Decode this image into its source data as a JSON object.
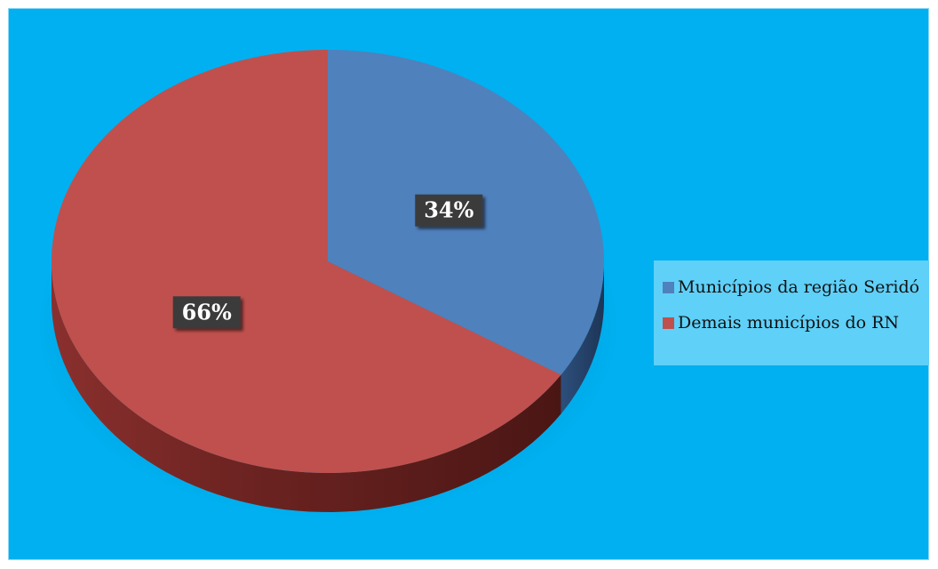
{
  "chart_data": {
    "type": "pie",
    "style": "3d",
    "categories": [
      "Municípios da região Seridó",
      "Demais municípios do RN"
    ],
    "values": [
      34,
      66
    ],
    "data_labels": [
      "34%",
      "66%"
    ],
    "colors": [
      "#4f81bd",
      "#c0504d"
    ],
    "legend_position": "right",
    "background": "#00b0f0"
  }
}
